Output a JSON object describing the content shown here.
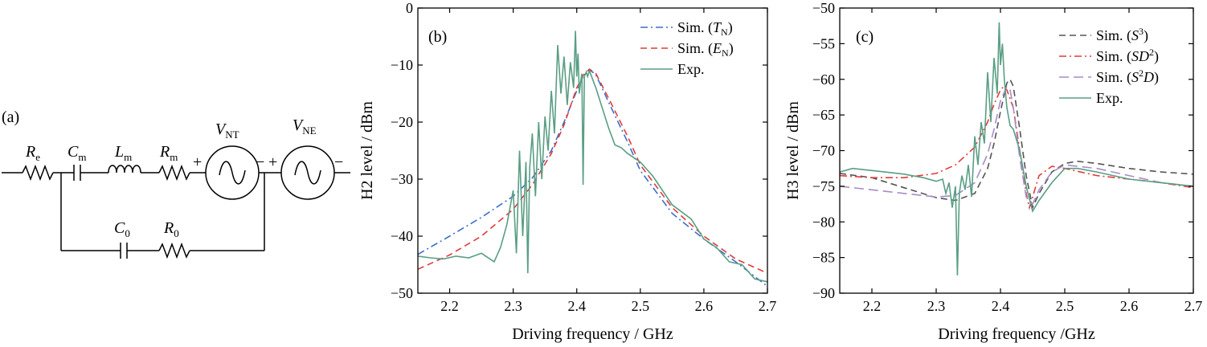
{
  "circuit": {
    "panel_label": "(a)",
    "labels": [
      {
        "main": "R",
        "sub": "e"
      },
      {
        "main": "C",
        "sub": "m"
      },
      {
        "main": "L",
        "sub": "m"
      },
      {
        "main": "R",
        "sub": "m"
      },
      {
        "main": "V",
        "sub": "NT"
      },
      {
        "main": "V",
        "sub": "NE"
      },
      {
        "main": "C",
        "sub": "0"
      },
      {
        "main": "R",
        "sub": "0"
      }
    ],
    "plus": "+",
    "minus": "−"
  },
  "chart_data": [
    {
      "type": "line",
      "panel_label": "(b)",
      "xlabel": "Driving frequency / GHz",
      "ylabel": "H2 level / dBm",
      "xlim": [
        2.15,
        2.7
      ],
      "ylim": [
        -50,
        0
      ],
      "xticks": [
        2.2,
        2.3,
        2.4,
        2.5,
        2.6,
        2.7
      ],
      "yticks": [
        -50,
        -40,
        -30,
        -20,
        -10,
        0
      ],
      "grid": false,
      "legend_position": "top-right",
      "series": [
        {
          "name": "Sim. (T_N)",
          "legend_main": "Sim. (",
          "legend_ital": "T",
          "legend_sub": "N",
          "legend_sup": "",
          "legend_end": ")",
          "color": "#3e6fc8",
          "dash": "9,4,2,4",
          "x": [
            2.15,
            2.2,
            2.25,
            2.3,
            2.33,
            2.36,
            2.38,
            2.4,
            2.41,
            2.42,
            2.43,
            2.45,
            2.48,
            2.5,
            2.55,
            2.6,
            2.65,
            2.7
          ],
          "y": [
            -43.2,
            -40.0,
            -36.7,
            -33.0,
            -29.8,
            -25.0,
            -20.0,
            -14.5,
            -12.0,
            -10.8,
            -11.7,
            -16.5,
            -23.5,
            -28.5,
            -36.0,
            -40.5,
            -44.5,
            -48.8
          ]
        },
        {
          "name": "Sim. (E_N)",
          "legend_main": "Sim. (",
          "legend_ital": "E",
          "legend_sub": "N",
          "legend_sup": "",
          "legend_end": ")",
          "color": "#e03c3c",
          "dash": "8,5",
          "x": [
            2.15,
            2.2,
            2.25,
            2.3,
            2.33,
            2.36,
            2.38,
            2.4,
            2.41,
            2.42,
            2.43,
            2.45,
            2.48,
            2.5,
            2.55,
            2.6,
            2.65,
            2.7
          ],
          "y": [
            -45.8,
            -43.3,
            -40.0,
            -35.3,
            -31.0,
            -25.5,
            -20.5,
            -14.0,
            -11.8,
            -10.7,
            -11.5,
            -15.8,
            -22.5,
            -27.5,
            -35.0,
            -40.0,
            -44.0,
            -46.5
          ]
        },
        {
          "name": "Exp.",
          "legend_main": "Exp.",
          "legend_ital": "",
          "legend_sub": "",
          "legend_sup": "",
          "legend_end": "",
          "color": "#5a9e84",
          "dash": "",
          "x": [
            2.15,
            2.17,
            2.19,
            2.21,
            2.23,
            2.25,
            2.27,
            2.28,
            2.29,
            2.3,
            2.305,
            2.31,
            2.315,
            2.32,
            2.323,
            2.326,
            2.33,
            2.335,
            2.34,
            2.345,
            2.35,
            2.355,
            2.36,
            2.365,
            2.37,
            2.375,
            2.38,
            2.385,
            2.39,
            2.395,
            2.398,
            2.4,
            2.402,
            2.404,
            2.406,
            2.408,
            2.41,
            2.412,
            2.414,
            2.415,
            2.417,
            2.42,
            2.425,
            2.43,
            2.44,
            2.45,
            2.46,
            2.47,
            2.48,
            2.5,
            2.52,
            2.55,
            2.58,
            2.6,
            2.62,
            2.64,
            2.66,
            2.68,
            2.7
          ],
          "y": [
            -43.5,
            -43.8,
            -44.0,
            -43.5,
            -43.8,
            -43.0,
            -44.5,
            -42.0,
            -38.0,
            -32.0,
            -43.0,
            -25.0,
            -40.0,
            -27.0,
            -46.5,
            -28.0,
            -22.0,
            -33.0,
            -20.0,
            -30.0,
            -19.0,
            -25.0,
            -14.5,
            -22.0,
            -6.5,
            -15.0,
            -8.5,
            -17.0,
            -9.5,
            -14.0,
            -4.0,
            -12.0,
            -8.0,
            -15.0,
            -13.0,
            -11.5,
            -31.0,
            -12.0,
            -11.5,
            -11.2,
            -12.0,
            -11.0,
            -12.5,
            -14.0,
            -17.5,
            -21.0,
            -24.0,
            -24.5,
            -25.5,
            -27.0,
            -29.5,
            -34.5,
            -37.0,
            -40.5,
            -42.0,
            -44.5,
            -45.0,
            -47.5,
            -48.0
          ]
        }
      ]
    },
    {
      "type": "line",
      "panel_label": "(c)",
      "xlabel": "Driving frequency /GHz",
      "ylabel": "H3 level / dBm",
      "xlim": [
        2.15,
        2.7
      ],
      "ylim": [
        -90,
        -50
      ],
      "xticks": [
        2.2,
        2.3,
        2.4,
        2.5,
        2.6,
        2.7
      ],
      "yticks": [
        -90,
        -85,
        -80,
        -75,
        -70,
        -65,
        -60,
        -55,
        -50
      ],
      "grid": false,
      "legend_position": "top-right",
      "series": [
        {
          "name": "Sim. (S^3)",
          "legend_main": "Sim. (",
          "legend_ital": "S",
          "legend_sub": "",
          "legend_sup": "3",
          "legend_end": ")",
          "color": "#555555",
          "dash": "8,5",
          "x": [
            2.15,
            2.2,
            2.25,
            2.3,
            2.33,
            2.36,
            2.38,
            2.39,
            2.4,
            2.41,
            2.415,
            2.42,
            2.43,
            2.44,
            2.45,
            2.46,
            2.48,
            2.5,
            2.52,
            2.55,
            2.6,
            2.65,
            2.7
          ],
          "y": [
            -73.2,
            -73.8,
            -75.2,
            -76.6,
            -77.0,
            -76.0,
            -72.5,
            -69.0,
            -64.5,
            -60.5,
            -60.0,
            -61.0,
            -67.0,
            -73.5,
            -78.0,
            -76.0,
            -73.0,
            -71.8,
            -71.5,
            -71.8,
            -72.5,
            -73.0,
            -73.3
          ]
        },
        {
          "name": "Sim. (SD^2)",
          "legend_main": "Sim. (",
          "legend_ital": "SD",
          "legend_sub": "",
          "legend_sup": "2",
          "legend_end": ")",
          "color": "#e03c3c",
          "dash": "9,4,2,4",
          "x": [
            2.15,
            2.2,
            2.25,
            2.3,
            2.33,
            2.36,
            2.38,
            2.39,
            2.4,
            2.405,
            2.41,
            2.42,
            2.43,
            2.44,
            2.445,
            2.45,
            2.46,
            2.48,
            2.5,
            2.55,
            2.6,
            2.65,
            2.7
          ],
          "y": [
            -73.5,
            -73.8,
            -73.8,
            -73.2,
            -72.0,
            -69.5,
            -66.0,
            -63.5,
            -61.5,
            -61.0,
            -61.5,
            -64.0,
            -70.0,
            -76.0,
            -78.0,
            -76.5,
            -73.5,
            -72.2,
            -72.5,
            -73.5,
            -74.0,
            -74.5,
            -75.2
          ]
        },
        {
          "name": "Sim. (S^2D)",
          "legend_main": "Sim. (",
          "legend_ital": "S",
          "legend_sub": "",
          "legend_sup": "2",
          "legend_end": "D)",
          "color": "#a88cc8",
          "dash": "12,6",
          "x": [
            2.15,
            2.2,
            2.25,
            2.3,
            2.33,
            2.36,
            2.38,
            2.39,
            2.4,
            2.41,
            2.415,
            2.42,
            2.43,
            2.44,
            2.45,
            2.46,
            2.48,
            2.5,
            2.55,
            2.6,
            2.65,
            2.7
          ],
          "y": [
            -75.0,
            -75.5,
            -76.0,
            -76.5,
            -76.3,
            -74.5,
            -70.5,
            -67.0,
            -63.0,
            -61.0,
            -61.5,
            -64.0,
            -71.0,
            -76.5,
            -77.5,
            -75.5,
            -73.0,
            -72.0,
            -72.5,
            -73.5,
            -74.5,
            -75.0
          ]
        },
        {
          "name": "Exp.",
          "legend_main": "Exp.",
          "legend_ital": "",
          "legend_sub": "",
          "legend_sup": "",
          "legend_end": "",
          "color": "#5a9e84",
          "dash": "",
          "x": [
            2.15,
            2.17,
            2.2,
            2.22,
            2.25,
            2.28,
            2.3,
            2.31,
            2.315,
            2.32,
            2.325,
            2.33,
            2.333,
            2.336,
            2.34,
            2.345,
            2.35,
            2.355,
            2.36,
            2.365,
            2.37,
            2.375,
            2.38,
            2.385,
            2.39,
            2.395,
            2.398,
            2.4,
            2.403,
            2.406,
            2.41,
            2.415,
            2.42,
            2.43,
            2.44,
            2.45,
            2.46,
            2.48,
            2.5,
            2.52,
            2.55,
            2.6,
            2.65,
            2.7
          ],
          "y": [
            -73.0,
            -72.5,
            -72.8,
            -73.0,
            -73.3,
            -73.8,
            -74.3,
            -74.0,
            -76.0,
            -74.5,
            -78.0,
            -75.0,
            -87.5,
            -76.0,
            -73.5,
            -75.5,
            -72.0,
            -76.5,
            -68.0,
            -72.0,
            -66.0,
            -69.0,
            -59.0,
            -66.0,
            -57.0,
            -62.0,
            -52.0,
            -58.0,
            -55.0,
            -60.0,
            -64.0,
            -66.5,
            -67.0,
            -70.0,
            -75.0,
            -78.5,
            -77.0,
            -74.5,
            -72.5,
            -72.5,
            -73.0,
            -74.0,
            -74.5,
            -75.0
          ]
        }
      ]
    }
  ]
}
